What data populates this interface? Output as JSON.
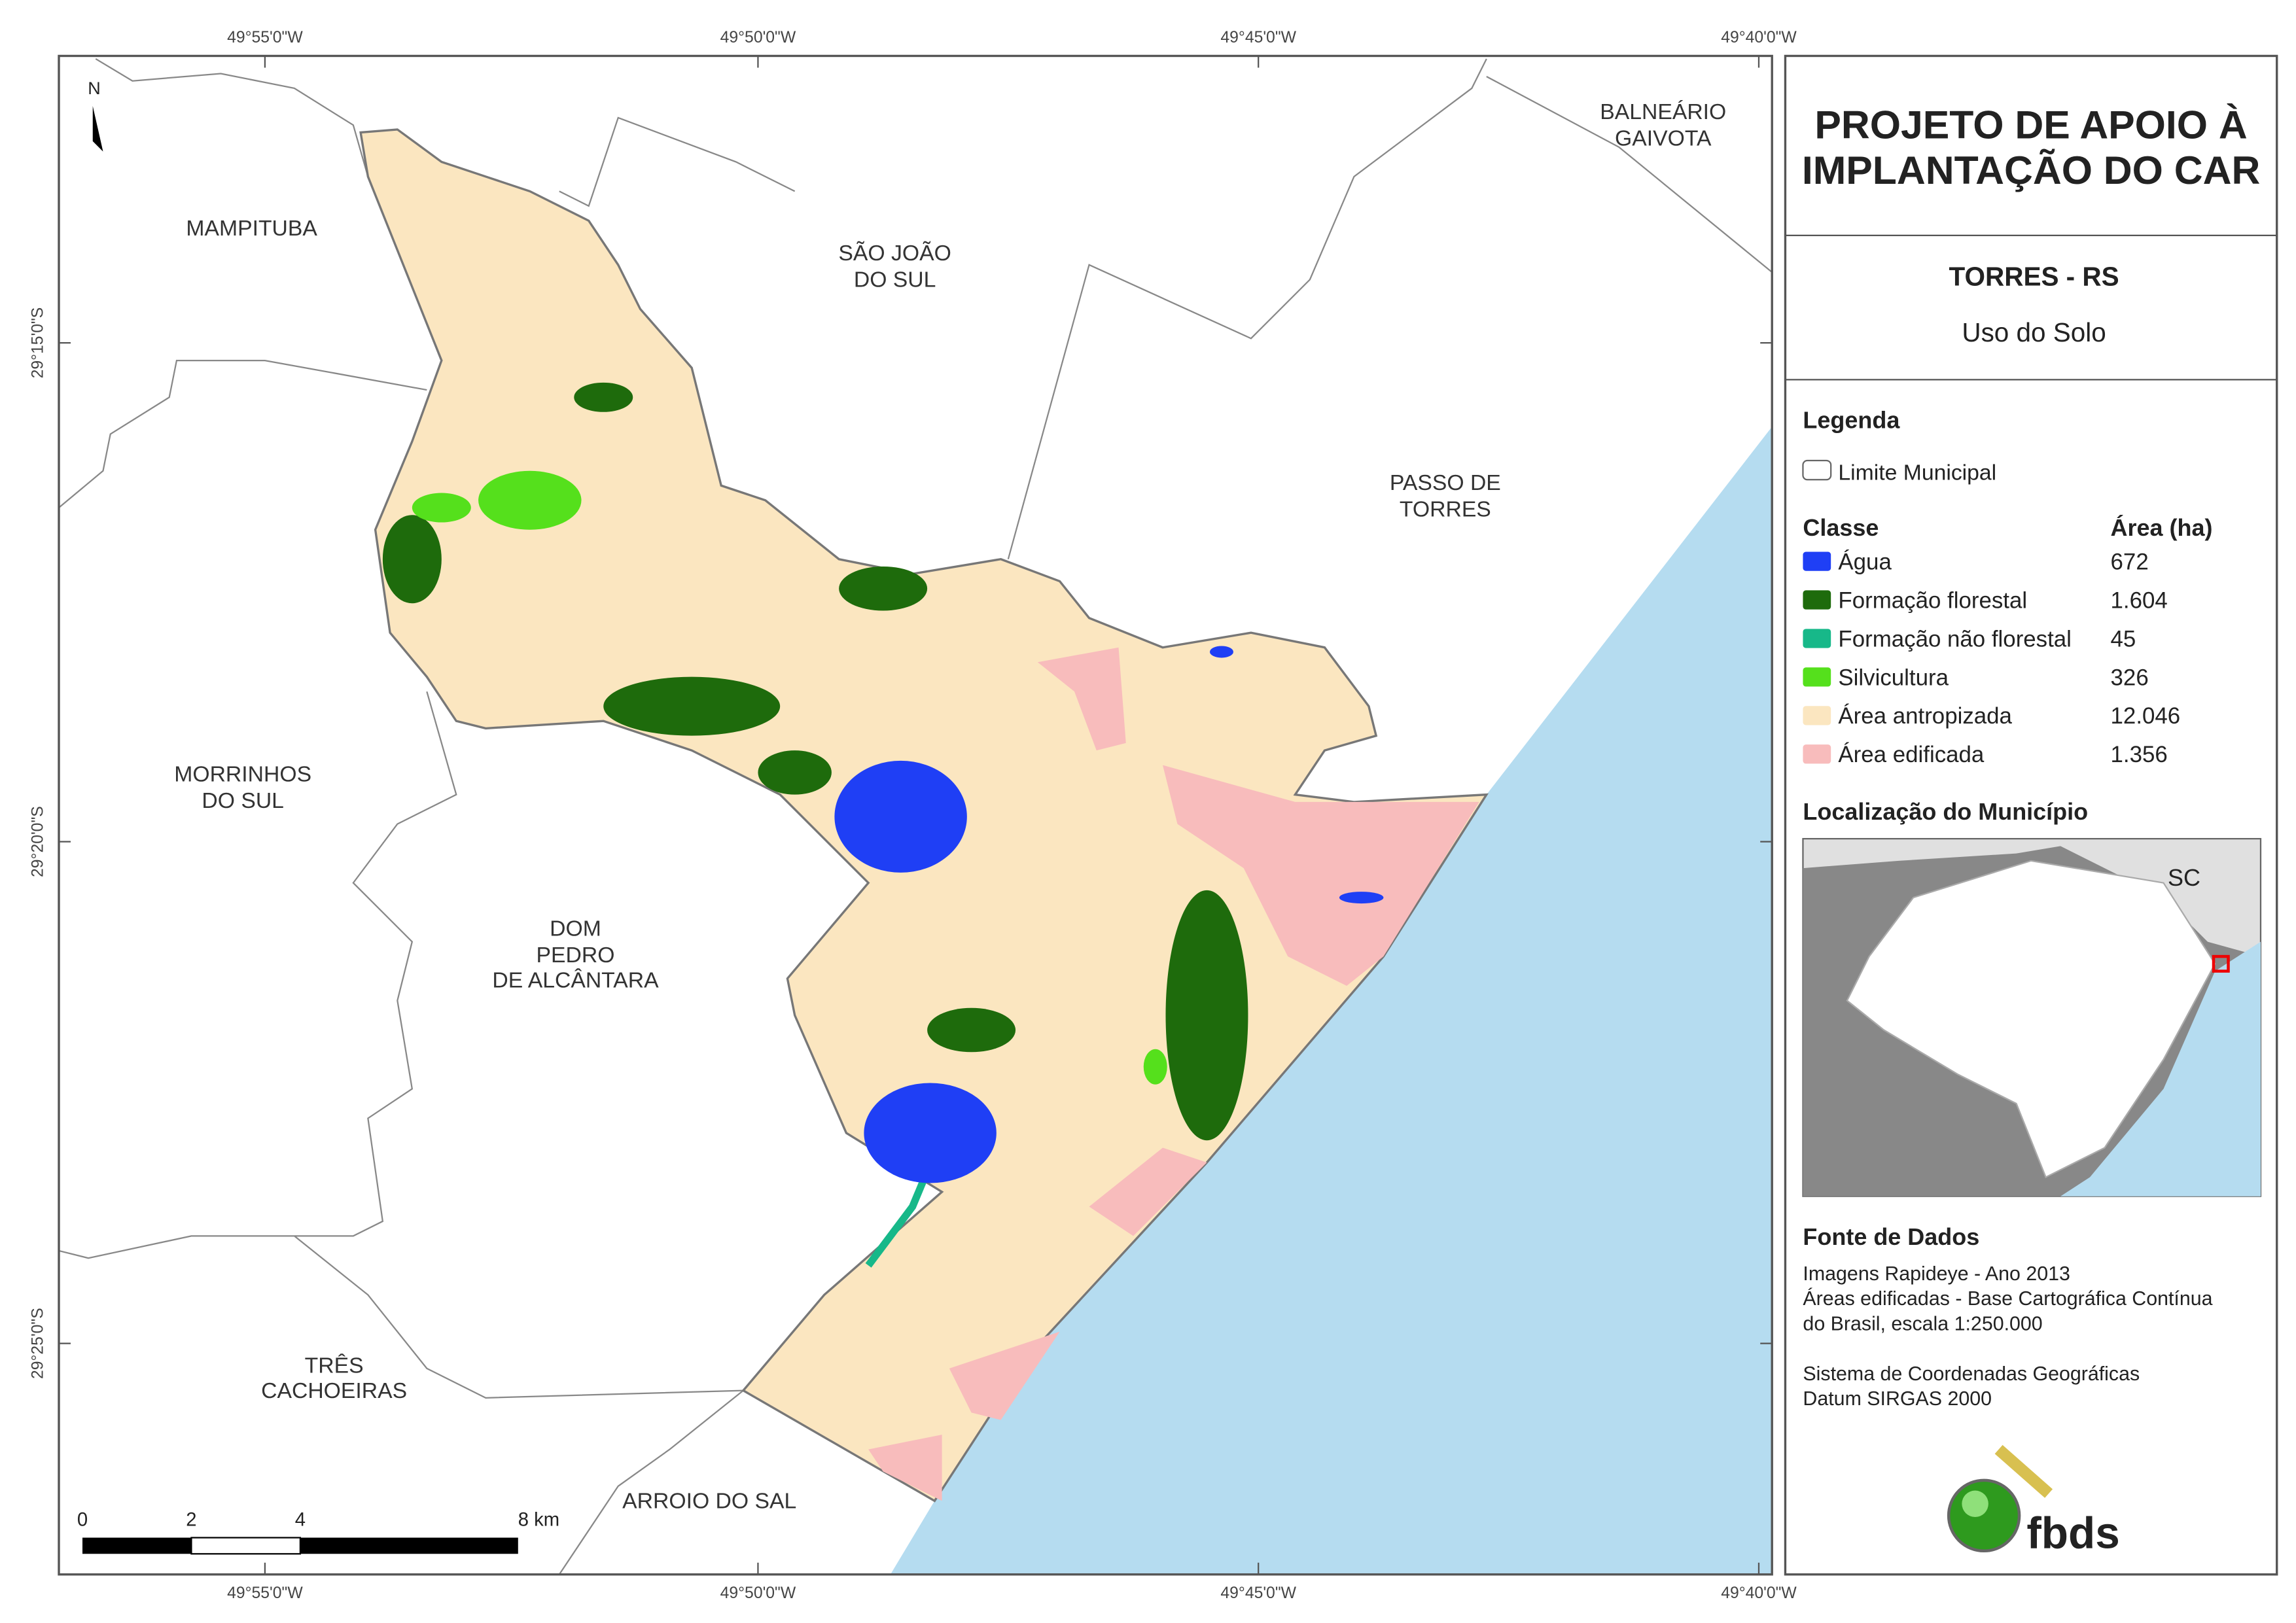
{
  "header": {
    "title_lines": [
      "PROJETO DE APOIO À",
      "IMPLANTAÇÃO DO CAR"
    ],
    "municipality": "TORRES - RS",
    "theme": "Uso do Solo"
  },
  "legend": {
    "title": "Legenda",
    "boundary": "Limite Municipal",
    "class_header": "Classe",
    "area_header": "Área (ha)",
    "classes": [
      {
        "name": "Água",
        "area": "672",
        "color": "#1f3ff5"
      },
      {
        "name": "Formação florestal",
        "area": "1.604",
        "color": "#1e6b0c"
      },
      {
        "name": "Formação não florestal",
        "area": "45",
        "color": "#17b889"
      },
      {
        "name": "Silvicultura",
        "area": "326",
        "color": "#55e01c"
      },
      {
        "name": "Área antropizada",
        "area": "12.046",
        "color": "#fbe6c0"
      },
      {
        "name": "Área edificada",
        "area": "1.356",
        "color": "#f8bcbc"
      }
    ]
  },
  "location": {
    "title": "Localização do Município",
    "state_label": "SC"
  },
  "sources": {
    "title": "Fonte de Dados",
    "lines": [
      "Imagens Rapideye - Ano 2013",
      "Áreas edificadas - Base Cartográfica Contínua",
      "do Brasil, escala 1:250.000",
      "Sistema de Coordenadas Geográficas",
      "Datum SIRGAS 2000"
    ]
  },
  "map": {
    "north": "N",
    "top_ticks": [
      "49°55'0\"W",
      "49°50'0\"W",
      "49°45'0\"W",
      "49°40'0\"W"
    ],
    "bottom_ticks": [
      "49°55'0\"W",
      "49°50'0\"W",
      "49°45'0\"W",
      "49°40'0\"W"
    ],
    "left_ticks": [
      "29°15'0\"S",
      "29°20'0\"S",
      "29°25'0\"S"
    ],
    "places": [
      {
        "lines": [
          "MAMPITUBA"
        ]
      },
      {
        "lines": [
          "SÃO JOÃO",
          "DO SUL"
        ]
      },
      {
        "lines": [
          "BALNEÁRIO",
          "GAIVOTA"
        ]
      },
      {
        "lines": [
          "PASSO DE",
          "TORRES"
        ]
      },
      {
        "lines": [
          "MORRINHOS",
          "DO SUL"
        ]
      },
      {
        "lines": [
          "DOM",
          "PEDRO",
          "DE ALCÂNTARA"
        ]
      },
      {
        "lines": [
          "TRÊS",
          "CACHOEIRAS"
        ]
      },
      {
        "lines": [
          "ARROIO DO SAL"
        ]
      }
    ],
    "scale_labels": [
      "0",
      "2",
      "4",
      "8 km"
    ]
  },
  "logo": "fbds"
}
